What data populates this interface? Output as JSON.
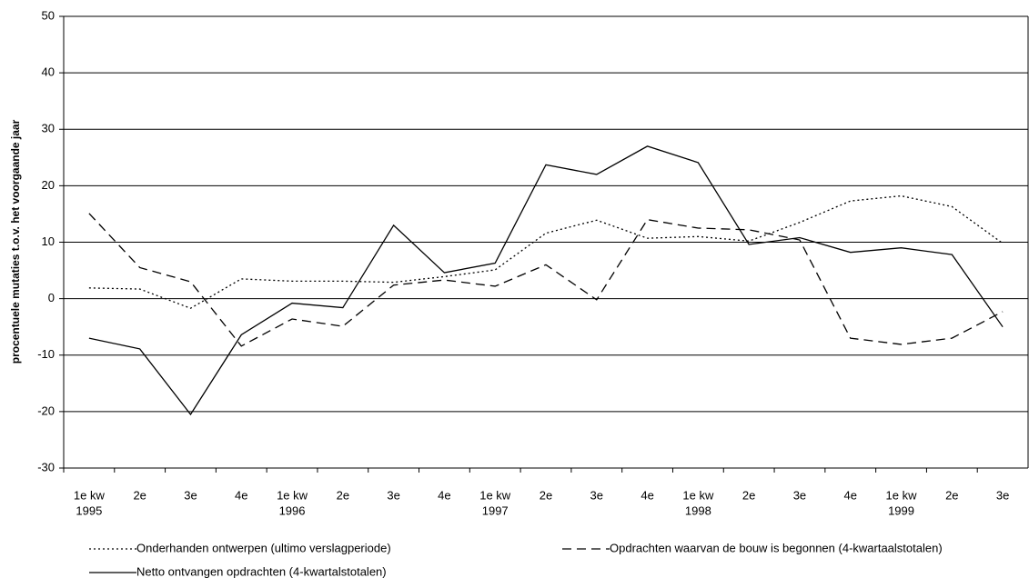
{
  "chart_data": {
    "type": "line",
    "y_label": "procentuele mutaties t.o.v. het voorgaande jaar",
    "categories": [
      "1e kw",
      "2e",
      "3e",
      "4e",
      "1e kw",
      "2e",
      "3e",
      "4e",
      "1e kw",
      "2e",
      "3e",
      "4e",
      "1e kw",
      "2e",
      "3e",
      "4e",
      "1e kw",
      "2e",
      "3e"
    ],
    "category_groups": [
      "1995",
      null,
      null,
      null,
      "1996",
      null,
      null,
      null,
      "1997",
      null,
      null,
      null,
      "1998",
      null,
      null,
      null,
      "1999",
      null,
      null
    ],
    "series": [
      {
        "name": "Onderhanden ontwerpen (ultimo verslagperiode)",
        "color": "#000000",
        "dash": "dotted",
        "values": [
          1.9,
          1.7,
          -1.7,
          3.5,
          3.1,
          3.1,
          2.9,
          3.9,
          5.1,
          11.6,
          13.9,
          10.7,
          11.0,
          10.2,
          13.5,
          17.3,
          18.2,
          16.3,
          9.8
        ]
      },
      {
        "name": "Opdrachten waarvan de bouw is begonnen (4-kwartaalstotalen)",
        "color": "#000000",
        "dash": "dashed",
        "values": [
          15.1,
          5.5,
          3.0,
          -8.4,
          -3.6,
          -4.9,
          2.4,
          3.3,
          2.2,
          6.0,
          -0.2,
          14.0,
          12.5,
          12.2,
          10.4,
          -7.0,
          -8.1,
          -7.0,
          -2.3
        ]
      },
      {
        "name": "Netto ontvangen opdrachten (4-kwartalstotalen)",
        "color": "#000000",
        "dash": "solid",
        "values": [
          -7.0,
          -8.9,
          -20.5,
          -6.4,
          -0.8,
          -1.6,
          13.0,
          4.6,
          6.3,
          23.7,
          22.0,
          27.0,
          24.1,
          9.6,
          10.8,
          8.2,
          9.0,
          7.8,
          -5.0
        ]
      }
    ],
    "ylim": [
      -30,
      50
    ],
    "yticks": [
      -30,
      -20,
      -10,
      0,
      10,
      20,
      30,
      40,
      50
    ],
    "grid": true
  }
}
